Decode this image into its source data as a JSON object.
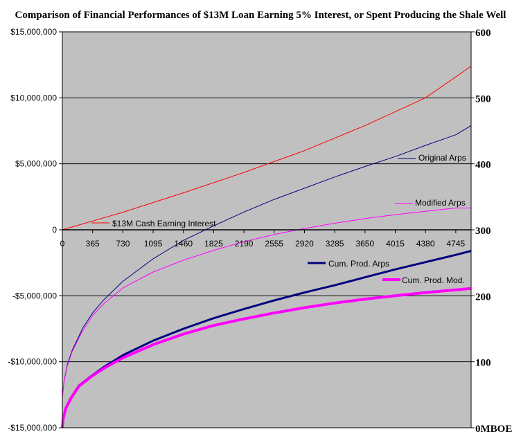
{
  "chart_data": {
    "type": "line",
    "title": "Comparison of Financial Performances of $13M Loan Earning 5% Interest, or Spent Producing the Shale Well",
    "xlabel": "",
    "ylabel": "",
    "y2label": "",
    "x_ticks": [
      "0",
      "365",
      "730",
      "1095",
      "1460",
      "1825",
      "2190",
      "2555",
      "2920",
      "3285",
      "3650",
      "4015",
      "4380",
      "4745"
    ],
    "y_ticks": [
      "-$15,000,000",
      "-$10,000,000",
      "-$5,000,000",
      "0",
      "$5,000,000",
      "$10,000,000",
      "$15,000,000"
    ],
    "y_tick_values": [
      -15000000,
      -10000000,
      -5000000,
      0,
      5000000,
      10000000,
      15000000
    ],
    "y2_ticks": [
      "0MBOE",
      "100",
      "200",
      "300",
      "400",
      "500",
      "600"
    ],
    "y2_tick_values": [
      0,
      100,
      200,
      300,
      400,
      500,
      600
    ],
    "xlim": [
      0,
      4930
    ],
    "ylim": [
      -15000000,
      15000000
    ],
    "y2lim": [
      0,
      600
    ],
    "grid": "horizontal",
    "plot_background": "#c0c0c0",
    "series": [
      {
        "name": "$13M Cash Earning Interest",
        "axis": "left",
        "color": "#ff0000",
        "width": 1,
        "x": [
          0,
          730,
          1460,
          2190,
          2920,
          3650,
          4380,
          4930
        ],
        "y": [
          0,
          1330000,
          2800000,
          4350000,
          6000000,
          7900000,
          10000000,
          12400000
        ]
      },
      {
        "name": "Original Arps",
        "axis": "left",
        "color": "#000080",
        "width": 1,
        "x": [
          0,
          20,
          60,
          120,
          250,
          365,
          500,
          730,
          1095,
          1460,
          1825,
          2190,
          2555,
          2920,
          3285,
          3650,
          4015,
          4380,
          4745,
          4930
        ],
        "y": [
          -12700000,
          -11500000,
          -10200000,
          -9100000,
          -7400000,
          -6300000,
          -5300000,
          -3900000,
          -2200000,
          -800000,
          300000,
          1350000,
          2300000,
          3150000,
          4000000,
          4800000,
          5550000,
          6400000,
          7200000,
          7900000
        ]
      },
      {
        "name": "Modified Arps",
        "axis": "left",
        "color": "#ff00ff",
        "width": 1,
        "x": [
          0,
          20,
          60,
          120,
          250,
          365,
          500,
          730,
          1095,
          1460,
          1825,
          2190,
          2555,
          2920,
          3285,
          3650,
          4015,
          4380,
          4745,
          4930
        ],
        "y": [
          -12700000,
          -11500000,
          -10300000,
          -9200000,
          -7600000,
          -6500000,
          -5600000,
          -4400000,
          -3200000,
          -2300000,
          -1550000,
          -900000,
          -350000,
          100000,
          500000,
          850000,
          1150000,
          1400000,
          1650000,
          1650000
        ]
      },
      {
        "name": "Cum. Prod. Arps",
        "axis": "right",
        "color": "#000080",
        "width": 3,
        "x": [
          0,
          10,
          40,
          100,
          200,
          365,
          500,
          730,
          1095,
          1460,
          1825,
          2190,
          2555,
          2920,
          3285,
          3650,
          4015,
          4380,
          4745,
          4930
        ],
        "y": [
          0,
          15,
          30,
          45,
          64,
          80,
          92,
          110,
          132,
          150,
          166,
          180,
          193,
          205,
          216,
          228,
          240,
          251,
          262,
          268
        ]
      },
      {
        "name": "Cum. Prod. Mod.",
        "axis": "right",
        "color": "#ff00ff",
        "width": 4,
        "x": [
          0,
          10,
          40,
          100,
          200,
          365,
          500,
          730,
          1095,
          1460,
          1825,
          2190,
          2555,
          2920,
          3285,
          3650,
          4015,
          4380,
          4745,
          4930
        ],
        "y": [
          0,
          14,
          29,
          44,
          63,
          79,
          90,
          106,
          126,
          142,
          155,
          165,
          174,
          182,
          189,
          195,
          200,
          205,
          209,
          211
        ]
      }
    ],
    "legend": [
      {
        "series": "$13M Cash Earning Interest",
        "label": "$13M Cash Earning Interest",
        "placement": "lower-left"
      },
      {
        "series": "Original Arps",
        "label": "Original Arps",
        "placement": "right"
      },
      {
        "series": "Modified Arps",
        "label": "Modified Arps",
        "placement": "right"
      },
      {
        "series": "Cum. Prod. Arps",
        "label": "Cum. Prod. Arps",
        "placement": "center"
      },
      {
        "series": "Cum. Prod. Mod.",
        "label": "Cum. Prod. Mod.",
        "placement": "lower-right"
      }
    ]
  }
}
